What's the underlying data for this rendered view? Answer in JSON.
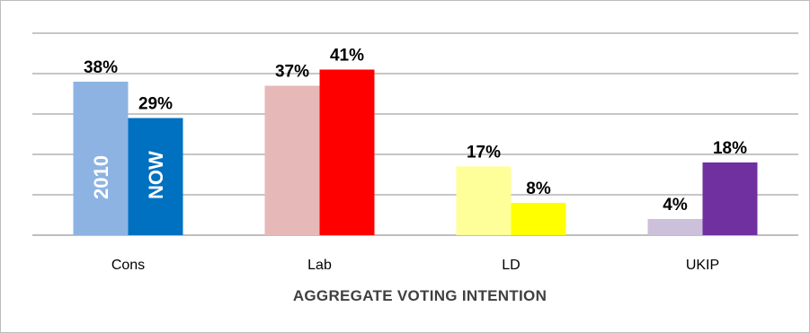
{
  "chart_data": {
    "type": "bar",
    "categories": [
      "Cons",
      "Lab",
      "LD",
      "UKIP"
    ],
    "series": [
      {
        "name": "2010",
        "values": [
          38,
          37,
          17,
          4
        ],
        "colors": [
          "#8db3e2",
          "#e6b9b8",
          "#ffff99",
          "#ccc0da"
        ]
      },
      {
        "name": "NOW",
        "values": [
          29,
          41,
          8,
          18
        ],
        "colors": [
          "#0070c0",
          "#ff0000",
          "#ffff00",
          "#7030a0"
        ]
      }
    ],
    "value_suffix": "%",
    "xlabel": "AGGREGATE VOTING INTENTION",
    "ylim": [
      0,
      50
    ],
    "grid": true,
    "legend": "inside-first-bars"
  }
}
